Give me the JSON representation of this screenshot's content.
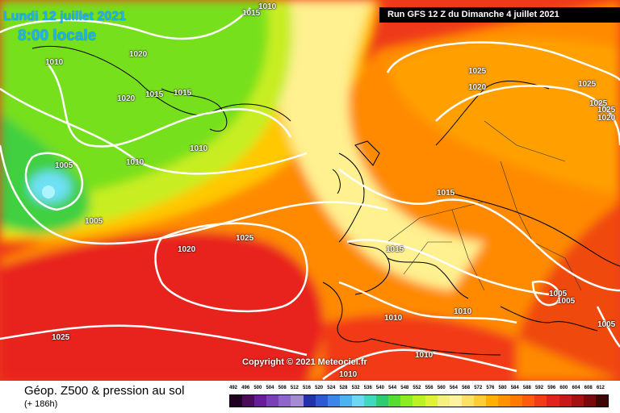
{
  "header": {
    "date_line": "Lundi 12 juillet 2021",
    "time_line": "8:00 locale",
    "run_info": "Run GFS 12 Z du Dimanche 4 juillet 2021"
  },
  "copyright": "Copyright © 2021 Meteociel.fr",
  "footer": {
    "title": "Géop. Z500 & pression au sol",
    "subtitle": "(+ 186h)"
  },
  "legend": {
    "values": [
      "492",
      "496",
      "500",
      "504",
      "508",
      "512",
      "516",
      "520",
      "524",
      "528",
      "532",
      "536",
      "540",
      "544",
      "548",
      "552",
      "556",
      "560",
      "564",
      "568",
      "572",
      "576",
      "580",
      "584",
      "588",
      "592",
      "596",
      "600",
      "604",
      "608",
      "612"
    ],
    "colors": [
      "#200020",
      "#4b0a5a",
      "#6a1b9a",
      "#7b3fb5",
      "#8e65c8",
      "#a48bd6",
      "#2233aa",
      "#2c5ad0",
      "#3d85e6",
      "#4fb2f0",
      "#6fd6f6",
      "#3fd9c0",
      "#2ecc71",
      "#55dd33",
      "#88ee22",
      "#bbf222",
      "#dff233",
      "#f5f080",
      "#fff2a0",
      "#ffe066",
      "#ffcc33",
      "#ffb000",
      "#ff9400",
      "#ff7a00",
      "#ff5a10",
      "#f53a18",
      "#e3221c",
      "#c81818",
      "#a51010",
      "#7a0a0a",
      "#400505"
    ]
  },
  "isobars": [
    {
      "label": "1015",
      "ax": 300,
      "ay": 12
    },
    {
      "label": "1010",
      "ax": 320,
      "ay": 4
    },
    {
      "label": "1020",
      "ax": 160,
      "ay": 63
    },
    {
      "label": "1010",
      "ax": 56,
      "ay": 73
    },
    {
      "label": "1020",
      "ax": 145,
      "ay": 118
    },
    {
      "label": "1015",
      "ax": 180,
      "ay": 113
    },
    {
      "label": "1015",
      "ax": 215,
      "ay": 111
    },
    {
      "label": "1010",
      "ax": 235,
      "ay": 180
    },
    {
      "label": "1010",
      "ax": 156,
      "ay": 197
    },
    {
      "label": "1005",
      "ax": 68,
      "ay": 201
    },
    {
      "label": "1005",
      "ax": 105,
      "ay": 270
    },
    {
      "label": "1020",
      "ax": 220,
      "ay": 305
    },
    {
      "label": "1025",
      "ax": 292,
      "ay": 291
    },
    {
      "label": "1015",
      "ax": 478,
      "ay": 305
    },
    {
      "label": "1015",
      "ax": 541,
      "ay": 235
    },
    {
      "label": "1025",
      "ax": 580,
      "ay": 84
    },
    {
      "label": "1020",
      "ax": 580,
      "ay": 104
    },
    {
      "label": "1025",
      "ax": 716,
      "ay": 100
    },
    {
      "label": "1025",
      "ax": 730,
      "ay": 124
    },
    {
      "label": "1025",
      "ax": 750,
      "ay": 132
    },
    {
      "label": "1020",
      "ax": 748,
      "ay": 142
    },
    {
      "label": "1010",
      "ax": 562,
      "ay": 382
    },
    {
      "label": "1010",
      "ax": 476,
      "ay": 390
    },
    {
      "label": "1005",
      "ax": 680,
      "ay": 360
    },
    {
      "label": "1005",
      "ax": 690,
      "ay": 369
    },
    {
      "label": "1010",
      "ax": 514,
      "ay": 436
    },
    {
      "label": "1025",
      "ax": 64,
      "ay": 414
    },
    {
      "label": "1010",
      "ax": 420,
      "ay": 467
    },
    {
      "label": "1005",
      "ax": 758,
      "ay": 398
    }
  ]
}
